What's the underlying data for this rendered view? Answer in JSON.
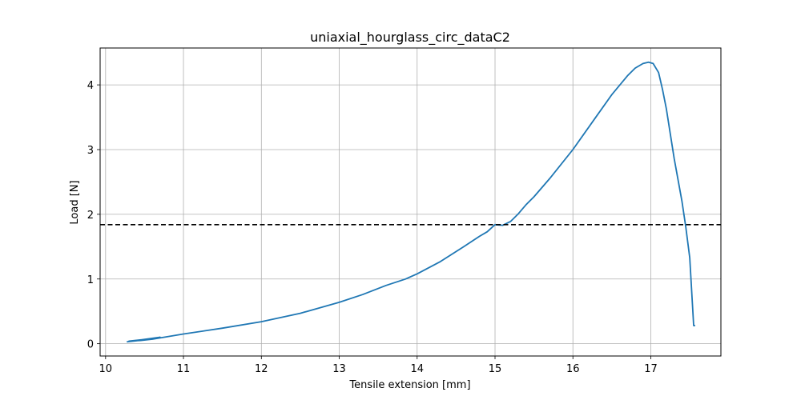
{
  "chart_data": {
    "type": "line",
    "title": "uniaxial_hourglass_circ_dataC2",
    "xlabel": "Tensile extension [mm]",
    "ylabel": "Load [N]",
    "xlim": [
      9.93,
      17.9
    ],
    "ylim": [
      -0.19,
      4.57
    ],
    "xticks": [
      10,
      11,
      12,
      13,
      14,
      15,
      16,
      17
    ],
    "yticks": [
      0,
      1,
      2,
      3,
      4
    ],
    "grid": true,
    "legend": "none",
    "series": [
      {
        "color": "#1f77b4",
        "style": "solid",
        "x": [
          10.3,
          10.55,
          10.7,
          10.28,
          10.5,
          10.68,
          10.3,
          10.45,
          10.6,
          10.7,
          11.0,
          11.5,
          12.0,
          12.5,
          13.0,
          13.3,
          13.6,
          13.85,
          14.0,
          14.3,
          14.6,
          14.8,
          14.9,
          15.0,
          15.1,
          15.2,
          15.3,
          15.4,
          15.5,
          15.7,
          16.0,
          16.3,
          16.5,
          16.7,
          16.8,
          16.9,
          16.97,
          17.03,
          17.1,
          17.15,
          17.2,
          17.3,
          17.4,
          17.45,
          17.5,
          17.55,
          17.57
        ],
        "y": [
          0.04,
          0.07,
          0.1,
          0.03,
          0.06,
          0.09,
          0.04,
          0.05,
          0.07,
          0.09,
          0.15,
          0.24,
          0.34,
          0.47,
          0.64,
          0.76,
          0.9,
          1.0,
          1.08,
          1.27,
          1.5,
          1.66,
          1.73,
          1.84,
          1.83,
          1.89,
          2.01,
          2.15,
          2.27,
          2.55,
          3.0,
          3.51,
          3.85,
          4.14,
          4.26,
          4.33,
          4.35,
          4.33,
          4.19,
          3.93,
          3.63,
          2.86,
          2.2,
          1.8,
          1.33,
          0.28,
          0.28
        ]
      },
      {
        "color": "#000000",
        "style": "dashed",
        "x": [
          9.93,
          17.9
        ],
        "y": [
          1.84,
          1.84
        ]
      }
    ]
  }
}
